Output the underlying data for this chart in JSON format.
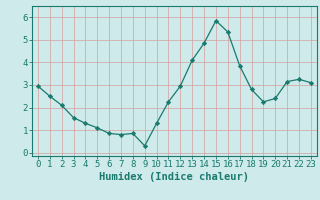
{
  "x": [
    0,
    1,
    2,
    3,
    4,
    5,
    6,
    7,
    8,
    9,
    10,
    11,
    12,
    13,
    14,
    15,
    16,
    17,
    18,
    19,
    20,
    21,
    22,
    23
  ],
  "y": [
    2.95,
    2.5,
    2.1,
    1.55,
    1.3,
    1.1,
    0.85,
    0.8,
    0.85,
    0.3,
    1.3,
    2.25,
    2.95,
    4.1,
    4.85,
    5.85,
    5.35,
    3.85,
    2.8,
    2.25,
    2.4,
    3.15,
    3.25,
    3.1
  ],
  "line_color": "#1a7a6e",
  "marker": "D",
  "marker_size": 2.2,
  "bg_color": "#ceeaea",
  "grid_color": "#b8d8d8",
  "xlabel": "Humidex (Indice chaleur)",
  "ylim": [
    -0.15,
    6.5
  ],
  "xlim": [
    -0.5,
    23.5
  ],
  "yticks": [
    0,
    1,
    2,
    3,
    4,
    5,
    6
  ],
  "xticks": [
    0,
    1,
    2,
    3,
    4,
    5,
    6,
    7,
    8,
    9,
    10,
    11,
    12,
    13,
    14,
    15,
    16,
    17,
    18,
    19,
    20,
    21,
    22,
    23
  ],
  "xlabel_fontsize": 7.5,
  "tick_fontsize": 6.5,
  "axis_color": "#1a7a6e",
  "grid_major_color": "#c8a0a0",
  "grid_minor_color": "#c8d8d8"
}
